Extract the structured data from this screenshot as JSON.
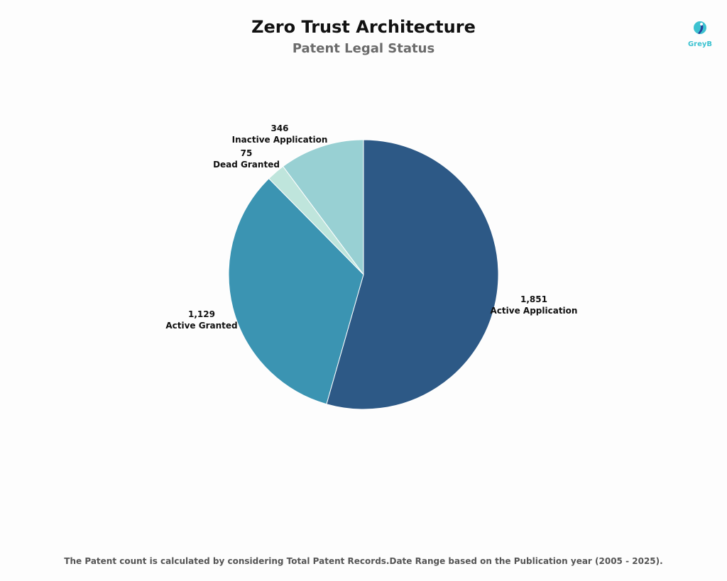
{
  "logo": {
    "text": "GreyB"
  },
  "chart_data": {
    "type": "pie",
    "title": "Zero Trust Architecture",
    "subtitle": "Patent Legal Status",
    "slices": [
      {
        "label": "Active Application",
        "value": 1851,
        "value_label": "1,851",
        "color": "#2d5986"
      },
      {
        "label": "Active Granted",
        "value": 1129,
        "value_label": "1,129",
        "color": "#3b94b2"
      },
      {
        "label": "Dead Granted",
        "value": 75,
        "value_label": "75",
        "color": "#bfe5dc"
      },
      {
        "label": "Inactive Application",
        "value": 346,
        "value_label": "346",
        "color": "#98d0d3"
      }
    ],
    "start": "top",
    "direction": "clockwise",
    "legend": "none"
  },
  "footer": "The Patent count is calculated by considering Total Patent Records.Date Range based on the Publication year (2005 - 2025)."
}
